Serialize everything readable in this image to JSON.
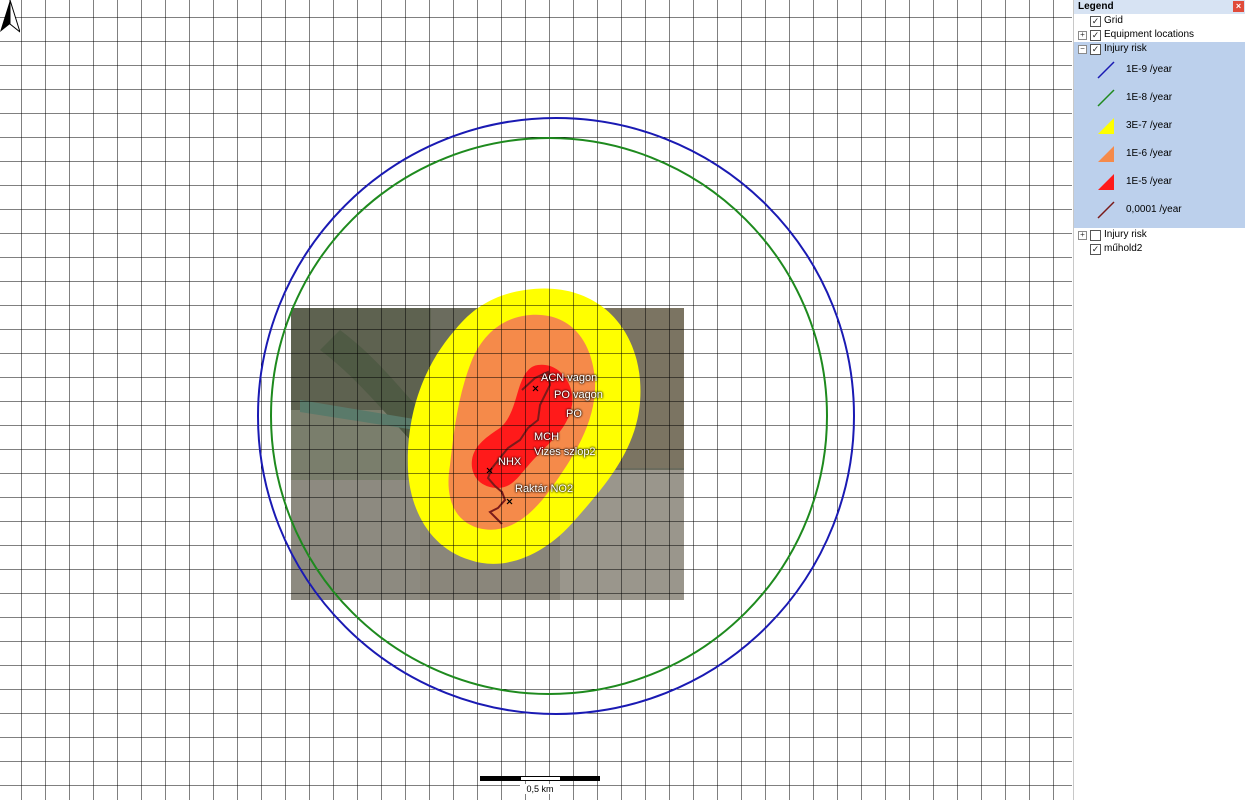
{
  "map": {
    "labels": {
      "acn": "ACN vagon",
      "po_vagon": "PO vagon",
      "po": "PO",
      "mch": "MCH",
      "vizes": "Vizes szlop2",
      "nhx": "NHX",
      "raktar": "Raktár NO2"
    },
    "scale_label": "0,5 km",
    "colors": {
      "ring_1e9": "#1a1ab3",
      "ring_1e8": "#1e8a1e",
      "zone_3e7": "#ffff00",
      "zone_1e6": "#f58a4a",
      "zone_1e5": "#ff1a1a",
      "line_1e4": "#7a1a1a"
    },
    "north_icon": "north-arrow-icon"
  },
  "legend": {
    "title": "Legend",
    "close_icon": "close-icon",
    "items": {
      "grid": "Grid",
      "equipment": "Equipment locations",
      "injury_risk": "Injury risk",
      "injury_risk2": "Injury risk",
      "satellite": "műhold2"
    },
    "classes": [
      {
        "label": "1E-9 /year",
        "color": "#1a1ab3"
      },
      {
        "label": "1E-8 /year",
        "color": "#1e8a1e"
      },
      {
        "label": "3E-7 /year",
        "color": "#ffff00"
      },
      {
        "label": "1E-6 /year",
        "color": "#f58a4a"
      },
      {
        "label": "1E-5 /year",
        "color": "#ff1a1a"
      },
      {
        "label": "0,0001 /year",
        "color": "#7a1a1a"
      }
    ]
  }
}
